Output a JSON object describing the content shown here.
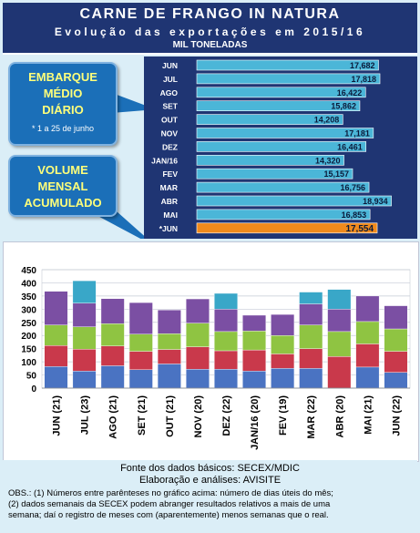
{
  "header": {
    "title": "CARNE DE FRANGO IN NATURA",
    "subtitle": "Evolução das exportações em 2015/16",
    "units": "MIL TONELADAS"
  },
  "callouts": {
    "daily": {
      "line1": "EMBARQUE",
      "line2": "MÉDIO",
      "line3": "DIÁRIO",
      "note": "* 1 a 25 de junho"
    },
    "monthly": {
      "line1": "VOLUME",
      "line2": "MENSAL",
      "line3": "ACUMULADO"
    }
  },
  "footer": {
    "source": "Fonte dos dados básicos: SECEX/MDIC",
    "elaboration": "Elaboração e análises: AVISITE",
    "obs1": "OBS.: (1) Números entre parênteses no gráfico acima: número de dias úteis do mês;",
    "obs2": "(2) dados semanais da SECEX podem abranger resultados relativos a mais de uma",
    "obs3": "semana; daí o registro de meses com (aparentemente) menos semanas que o real."
  },
  "colors": {
    "title_bg": "#1f3573",
    "bar_fill": "#4bb6d8",
    "bar_highlight": "#f08a1c",
    "callout_fill": "#1b6fb8",
    "callout_text": "#ffff7a",
    "week_colors": [
      "#4a73c2",
      "#c9394b",
      "#8fc442",
      "#7b4fa3",
      "#39a7c8"
    ]
  },
  "chart_data": [
    {
      "type": "bar",
      "orientation": "horizontal",
      "categories": [
        "JUN",
        "JUL",
        "AGO",
        "SET",
        "OUT",
        "NOV",
        "DEZ",
        "JAN/16",
        "FEV",
        "MAR",
        "ABR",
        "MAI",
        "*JUN"
      ],
      "values": [
        17682,
        17818,
        16422,
        15862,
        14208,
        17181,
        16461,
        14320,
        15157,
        16756,
        18934,
        16853,
        17554
      ],
      "value_labels": [
        "17,682",
        "17,818",
        "16,422",
        "15,862",
        "14,208",
        "17,181",
        "16,461",
        "14,320",
        "15,157",
        "16,756",
        "18,934",
        "16,853",
        "17,554"
      ],
      "highlight_index": 12
    },
    {
      "type": "bar",
      "stacked": true,
      "categories": [
        "JUN (21)",
        "JUL (23)",
        "AGO (21)",
        "SET (21)",
        "OUT (21)",
        "NOV (20)",
        "DEZ (22)",
        "JAN/16 (20)",
        "FEV (19)",
        "MAR (22)",
        "ABR (20)",
        "MAI (21)",
        "JUN (22)"
      ],
      "ylim": [
        0,
        450
      ],
      "yticks": [
        0,
        50,
        100,
        150,
        200,
        250,
        300,
        350,
        400,
        450
      ],
      "grid": true,
      "series": [
        {
          "values": [
            82,
            65,
            85,
            70,
            92,
            72,
            72,
            65,
            75,
            75,
            0,
            80,
            60
          ]
        },
        {
          "values": [
            80,
            83,
            75,
            70,
            55,
            85,
            70,
            80,
            55,
            75,
            120,
            88,
            80
          ]
        },
        {
          "values": [
            78,
            85,
            85,
            65,
            60,
            90,
            73,
            72,
            70,
            90,
            95,
            85,
            85
          ]
        },
        {
          "values": [
            128,
            90,
            95,
            120,
            90,
            92,
            85,
            60,
            80,
            80,
            85,
            97,
            88
          ]
        },
        {
          "values": [
            0,
            85,
            0,
            0,
            0,
            0,
            60,
            0,
            0,
            45,
            75,
            0,
            0
          ]
        }
      ]
    }
  ]
}
